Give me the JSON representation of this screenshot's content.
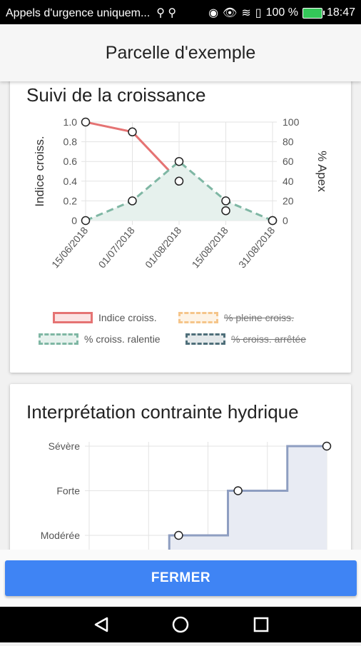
{
  "status_bar": {
    "carrier": "Appels d'urgence uniquem...",
    "battery": "100 %",
    "time": "18:47"
  },
  "app_bar": {
    "title": "Parcelle d'exemple"
  },
  "growth_card": {
    "title": "Suivi de la croissance",
    "legend": [
      {
        "label": "Indice croiss.",
        "struck": false,
        "color": "#e57373",
        "fill": "#fbe3e3",
        "dashed": false
      },
      {
        "label": "% pleine croiss.",
        "struck": true,
        "color": "#f5c58a",
        "fill": "#fdf3e6",
        "dashed": true
      },
      {
        "label": "% croiss. ralentie",
        "struck": false,
        "color": "#7fb7a4",
        "fill": "#e6f1ed",
        "dashed": true
      },
      {
        "label": "% croiss. arrêtée",
        "struck": true,
        "color": "#4f6f7a",
        "fill": "#e3e8ea",
        "dashed": true
      }
    ]
  },
  "water_card": {
    "title": "Interprétation contrainte hydrique"
  },
  "footer": {
    "close_label": "FERMER"
  },
  "chart_data": [
    {
      "type": "line",
      "title": "Suivi de la croissance",
      "categories": [
        "15/06/2018",
        "01/07/2018",
        "01/08/2018",
        "15/08/2018",
        "31/08/2018"
      ],
      "ylabel": "Indice croiss.",
      "y2label": "% Apex",
      "ylim": [
        0,
        1
      ],
      "y2lim": [
        0,
        100
      ],
      "yticks": [
        "0",
        "0.2",
        "0.4",
        "0.6",
        "0.8",
        "1.0"
      ],
      "y2ticks": [
        "0",
        "20",
        "40",
        "60",
        "80",
        "100"
      ],
      "grid": true,
      "legend_position": "bottom",
      "series": [
        {
          "name": "Indice croiss.",
          "axis": "left",
          "values": [
            1.0,
            0.9,
            0.4,
            0.1,
            0.0
          ],
          "color": "#e57373",
          "dashed": false,
          "filled": false
        },
        {
          "name": "% croiss. ralentie",
          "axis": "right",
          "values": [
            0,
            20,
            60,
            20,
            0
          ],
          "color": "#7fb7a4",
          "dashed": true,
          "filled": true
        }
      ]
    },
    {
      "type": "line",
      "title": "Interprétation contrainte hydrique",
      "step": true,
      "categories_levels": [
        "Modérée",
        "Forte",
        "Sévère"
      ],
      "values": [
        "Modérée",
        "Forte",
        "Sévère"
      ],
      "grid": true,
      "color": "#8e9ec1",
      "fill": "#e8ebf3"
    }
  ]
}
